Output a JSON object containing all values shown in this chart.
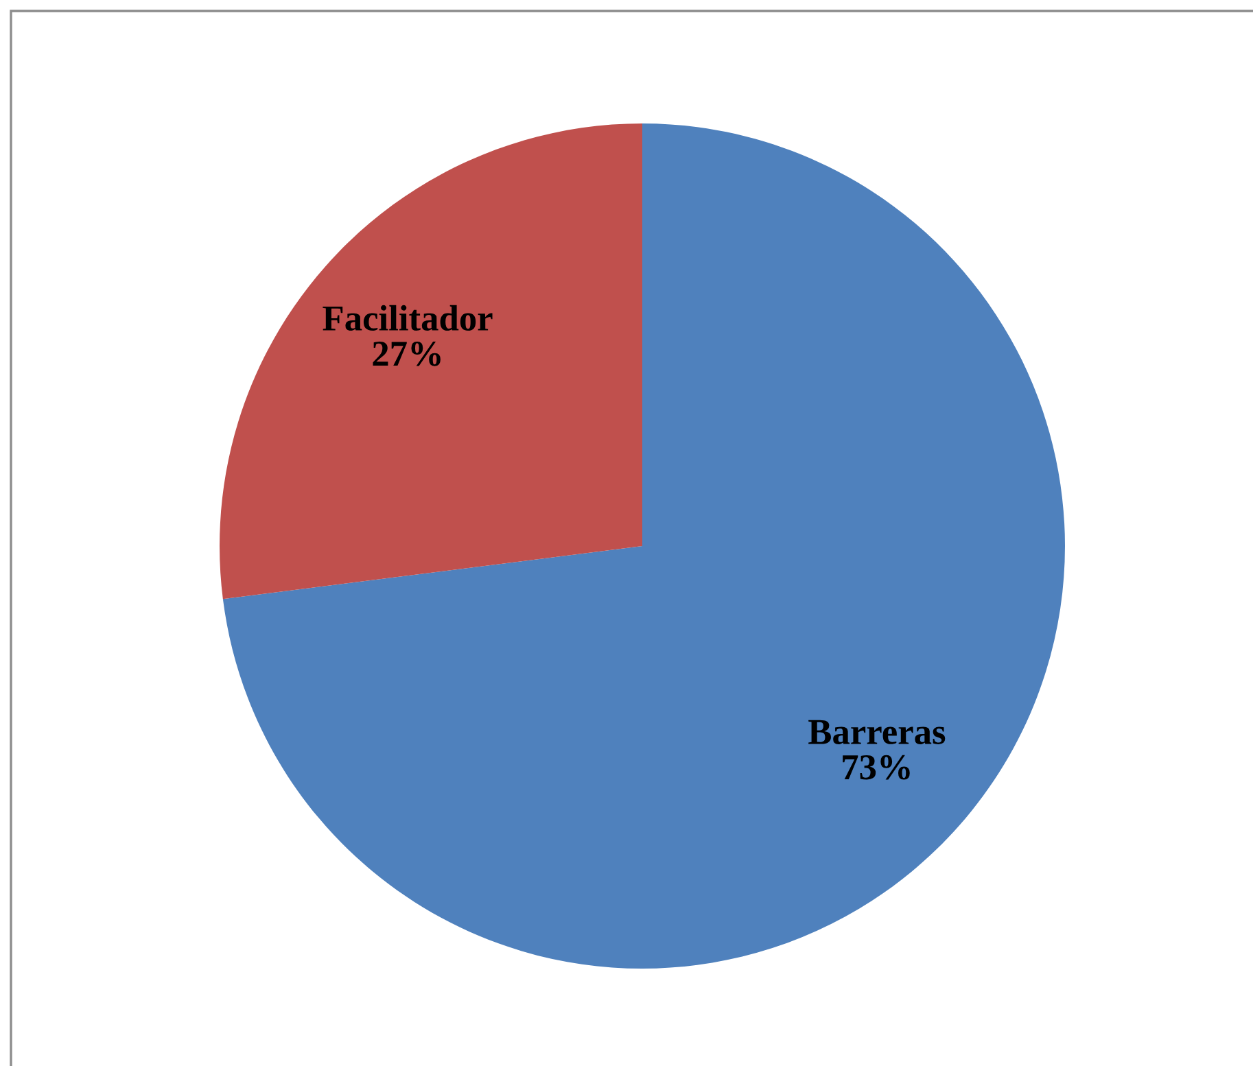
{
  "chart_data": {
    "type": "pie",
    "categories": [
      "Barreras",
      "Facilitador"
    ],
    "values": [
      73,
      27
    ],
    "colors": [
      "#4f81bd",
      "#c0504d"
    ],
    "value_labels": [
      "73%",
      "27%"
    ]
  }
}
